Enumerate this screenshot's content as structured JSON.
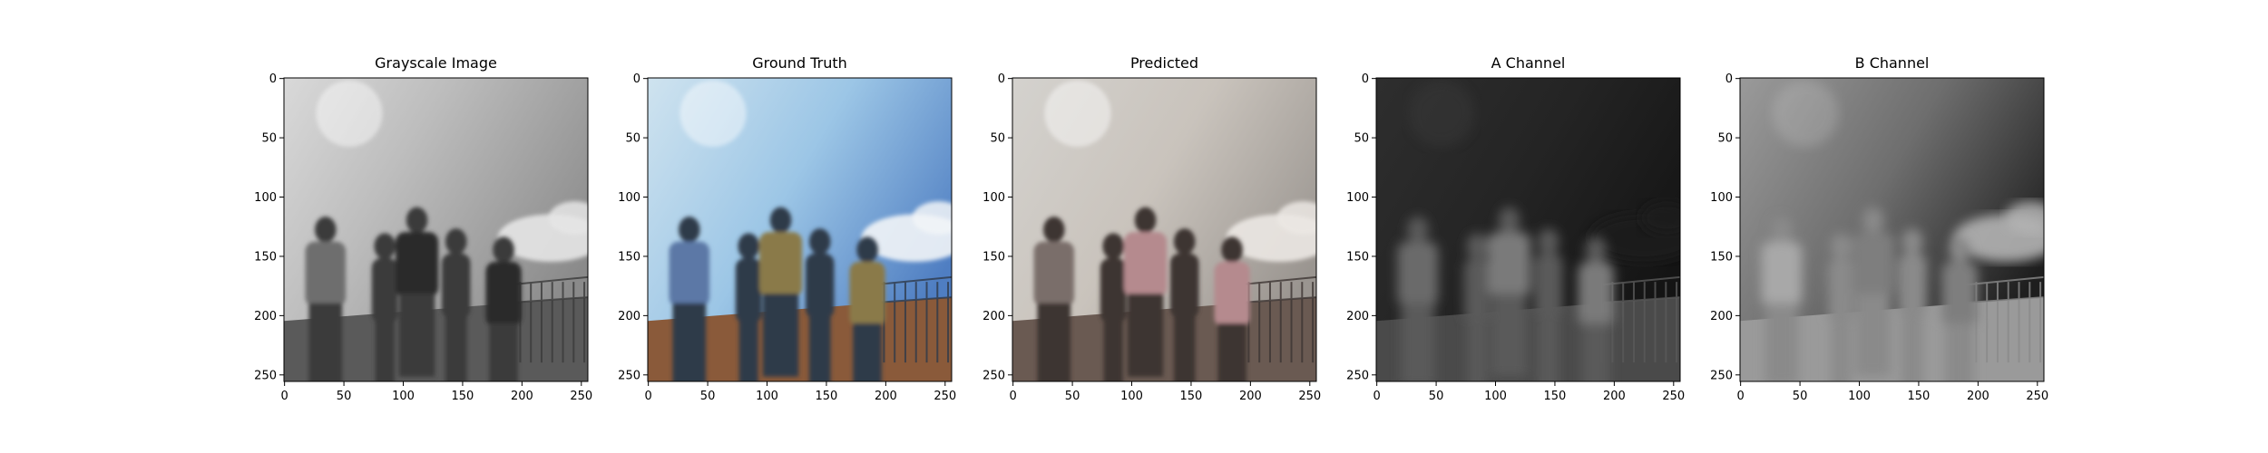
{
  "figure": {
    "panels": [
      {
        "title": "Grayscale Image",
        "kind": "gray"
      },
      {
        "title": "Ground Truth",
        "kind": "color"
      },
      {
        "title": "Predicted",
        "kind": "pred"
      },
      {
        "title": "A Channel",
        "kind": "a"
      },
      {
        "title": "B Channel",
        "kind": "b"
      }
    ],
    "x_ticks": [
      "0",
      "50",
      "100",
      "150",
      "200",
      "250"
    ],
    "y_ticks": [
      "0",
      "50",
      "100",
      "150",
      "200",
      "250"
    ],
    "x_tick_values": [
      0,
      50,
      100,
      150,
      200,
      250
    ],
    "y_tick_values": [
      0,
      50,
      100,
      150,
      200,
      250
    ],
    "axis_limits": [
      0,
      256
    ]
  }
}
